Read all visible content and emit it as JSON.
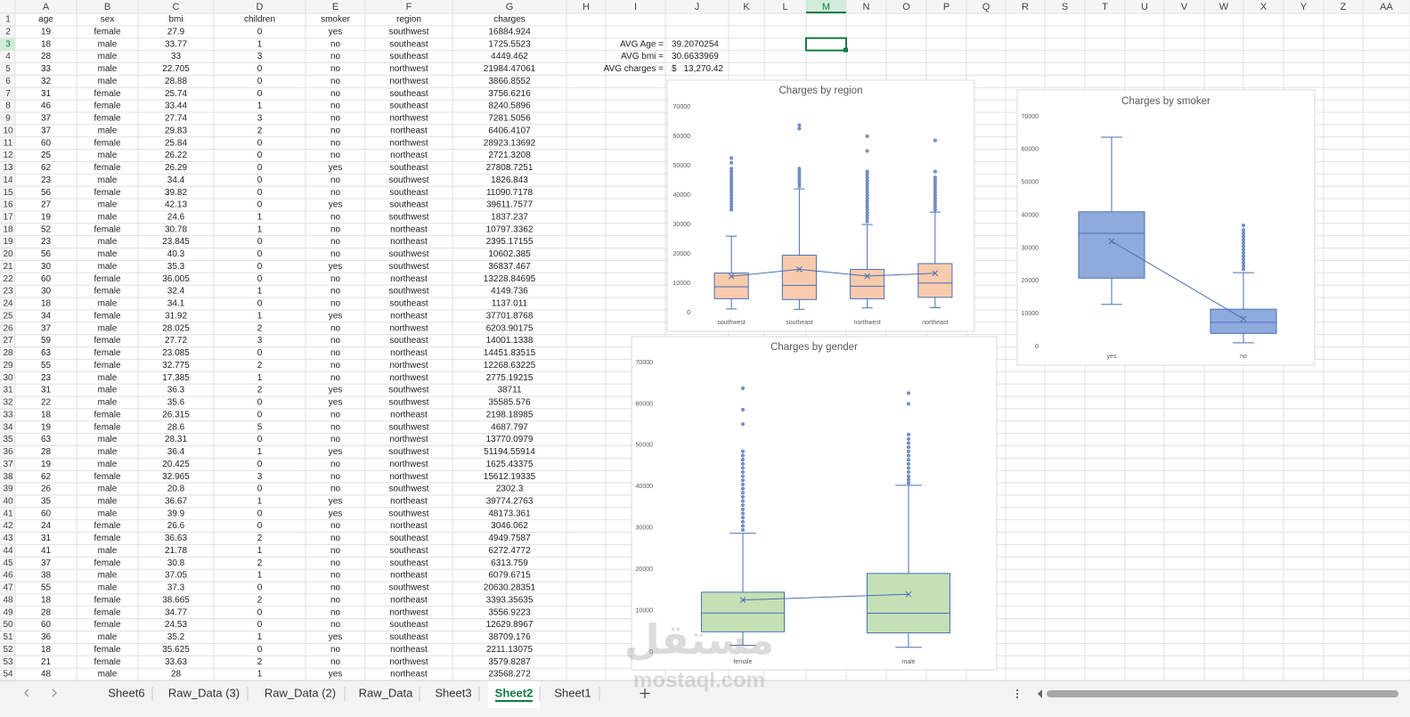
{
  "sheet": {
    "columns": [
      "A",
      "B",
      "C",
      "D",
      "E",
      "F",
      "G",
      "H",
      "I",
      "J",
      "K",
      "L",
      "M",
      "N",
      "O",
      "P",
      "Q",
      "R",
      "S",
      "T",
      "U",
      "V",
      "W",
      "X",
      "Y",
      "Z",
      "AA"
    ],
    "row_numbers": [
      1,
      2,
      3,
      4,
      5,
      6,
      7,
      8,
      9,
      10,
      11,
      12,
      13,
      14,
      15,
      16,
      17,
      18,
      19,
      20,
      21,
      22,
      23,
      24,
      25,
      26,
      27,
      28,
      29,
      30,
      31,
      32,
      33,
      34,
      35,
      36,
      37,
      38,
      39,
      40,
      41,
      42,
      43,
      44,
      45,
      46,
      47,
      48,
      49,
      50,
      51,
      52,
      53,
      54
    ],
    "header": [
      "age",
      "sex",
      "bmi",
      "children",
      "smoker",
      "region",
      "charges"
    ],
    "rows": [
      [
        19,
        "female",
        27.9,
        0,
        "yes",
        "southwest",
        16884.924
      ],
      [
        18,
        "male",
        33.77,
        1,
        "no",
        "southeast",
        1725.5523
      ],
      [
        28,
        "male",
        33,
        3,
        "no",
        "southeast",
        4449.462
      ],
      [
        33,
        "male",
        22.705,
        0,
        "no",
        "northwest",
        21984.47061
      ],
      [
        32,
        "male",
        28.88,
        0,
        "no",
        "northwest",
        3866.8552
      ],
      [
        31,
        "female",
        25.74,
        0,
        "no",
        "southeast",
        3756.6216
      ],
      [
        46,
        "female",
        33.44,
        1,
        "no",
        "southeast",
        8240.5896
      ],
      [
        37,
        "female",
        27.74,
        3,
        "no",
        "northwest",
        7281.5056
      ],
      [
        37,
        "male",
        29.83,
        2,
        "no",
        "northeast",
        6406.4107
      ],
      [
        60,
        "female",
        25.84,
        0,
        "no",
        "northwest",
        28923.13692
      ],
      [
        25,
        "male",
        26.22,
        0,
        "no",
        "northeast",
        2721.3208
      ],
      [
        62,
        "female",
        26.29,
        0,
        "yes",
        "southeast",
        27808.7251
      ],
      [
        23,
        "male",
        34.4,
        0,
        "no",
        "southwest",
        1826.843
      ],
      [
        56,
        "female",
        39.82,
        0,
        "no",
        "southeast",
        11090.7178
      ],
      [
        27,
        "male",
        42.13,
        0,
        "yes",
        "southeast",
        39611.7577
      ],
      [
        19,
        "male",
        24.6,
        1,
        "no",
        "southwest",
        1837.237
      ],
      [
        52,
        "female",
        30.78,
        1,
        "no",
        "northeast",
        10797.3362
      ],
      [
        23,
        "male",
        23.845,
        0,
        "no",
        "northeast",
        2395.17155
      ],
      [
        56,
        "male",
        40.3,
        0,
        "no",
        "southwest",
        10602.385
      ],
      [
        30,
        "male",
        35.3,
        0,
        "yes",
        "southwest",
        36837.467
      ],
      [
        60,
        "female",
        36.005,
        0,
        "no",
        "northeast",
        13228.84695
      ],
      [
        30,
        "female",
        32.4,
        1,
        "no",
        "southwest",
        4149.736
      ],
      [
        18,
        "male",
        34.1,
        0,
        "no",
        "southeast",
        1137.011
      ],
      [
        34,
        "female",
        31.92,
        1,
        "yes",
        "northeast",
        37701.8768
      ],
      [
        37,
        "male",
        28.025,
        2,
        "no",
        "northwest",
        6203.90175
      ],
      [
        59,
        "female",
        27.72,
        3,
        "no",
        "southeast",
        14001.1338
      ],
      [
        63,
        "female",
        23.085,
        0,
        "no",
        "northeast",
        14451.83515
      ],
      [
        55,
        "female",
        32.775,
        2,
        "no",
        "northwest",
        12268.63225
      ],
      [
        23,
        "male",
        17.385,
        1,
        "no",
        "northwest",
        2775.19215
      ],
      [
        31,
        "male",
        36.3,
        2,
        "yes",
        "southwest",
        38711
      ],
      [
        22,
        "male",
        35.6,
        0,
        "yes",
        "southwest",
        35585.576
      ],
      [
        18,
        "female",
        26.315,
        0,
        "no",
        "northeast",
        2198.18985
      ],
      [
        19,
        "female",
        28.6,
        5,
        "no",
        "southwest",
        4687.797
      ],
      [
        63,
        "male",
        28.31,
        0,
        "no",
        "northwest",
        13770.0979
      ],
      [
        28,
        "male",
        36.4,
        1,
        "yes",
        "southwest",
        51194.55914
      ],
      [
        19,
        "male",
        20.425,
        0,
        "no",
        "northwest",
        1625.43375
      ],
      [
        62,
        "female",
        32.965,
        3,
        "no",
        "northwest",
        15612.19335
      ],
      [
        26,
        "male",
        20.8,
        0,
        "no",
        "southwest",
        2302.3
      ],
      [
        35,
        "male",
        36.67,
        1,
        "yes",
        "northeast",
        39774.2763
      ],
      [
        60,
        "male",
        39.9,
        0,
        "yes",
        "southwest",
        48173.361
      ],
      [
        24,
        "female",
        26.6,
        0,
        "no",
        "northeast",
        3046.062
      ],
      [
        31,
        "female",
        36.63,
        2,
        "no",
        "southeast",
        4949.7587
      ],
      [
        41,
        "male",
        21.78,
        1,
        "no",
        "southeast",
        6272.4772
      ],
      [
        37,
        "female",
        30.8,
        2,
        "no",
        "southeast",
        6313.759
      ],
      [
        38,
        "male",
        37.05,
        1,
        "no",
        "northeast",
        6079.6715
      ],
      [
        55,
        "male",
        37.3,
        0,
        "no",
        "southwest",
        20630.28351
      ],
      [
        18,
        "female",
        38.665,
        2,
        "no",
        "northeast",
        3393.35635
      ],
      [
        28,
        "female",
        34.77,
        0,
        "no",
        "northwest",
        3556.9223
      ],
      [
        60,
        "female",
        24.53,
        0,
        "no",
        "southeast",
        12629.8967
      ],
      [
        36,
        "male",
        35.2,
        1,
        "yes",
        "southeast",
        38709.176
      ],
      [
        18,
        "female",
        35.625,
        0,
        "no",
        "northeast",
        2211.13075
      ],
      [
        21,
        "female",
        33.63,
        2,
        "no",
        "northwest",
        3579.8287
      ],
      [
        48,
        "male",
        28,
        1,
        "yes",
        "northeast",
        23568.272
      ]
    ],
    "stats": [
      {
        "label": "AVG Age =",
        "value": 39.2070254
      },
      {
        "label": "AVG bmi =",
        "value": 30.6633969
      },
      {
        "label": "AVG charges =",
        "symbol": "$",
        "value": "13,270.42"
      }
    ],
    "tabs": [
      "Sheet6",
      "Raw_Data (3)",
      "Raw_Data (2)",
      "Raw_Data",
      "Sheet3",
      "Sheet2",
      "Sheet1"
    ],
    "active_tab": 5
  },
  "watermark": {
    "logo": "مستقل",
    "url": "mostaql.com"
  },
  "chart_data": [
    {
      "type": "box",
      "title": "Charges by region",
      "categories": [
        "southwest",
        "southeast",
        "northwest",
        "northeast"
      ],
      "min": [
        1242,
        1122,
        1621,
        1695
      ],
      "q1": [
        4751,
        4441,
        4720,
        5194
      ],
      "median": [
        8798,
        9294,
        8966,
        10058
      ],
      "q3": [
        13463,
        19526,
        14712,
        16687
      ],
      "max": [
        26000,
        42100,
        30000,
        34200
      ],
      "mean": [
        12347,
        14735,
        12418,
        13406
      ],
      "outliers": [
        [
          35000,
          36000,
          37000,
          38000,
          39000,
          40000,
          41000,
          42000,
          43000,
          44000,
          45000,
          46000,
          47000,
          48000,
          49000,
          51000,
          52600
        ],
        [
          43000,
          44000,
          45000,
          46000,
          47000,
          48000,
          49000,
          62600,
          63770
        ],
        [
          31000,
          32000,
          33000,
          34000,
          35000,
          36000,
          37000,
          38000,
          39000,
          40000,
          41000,
          42000,
          43000,
          44000,
          45000,
          46000,
          47000,
          48000,
          55000,
          60000
        ],
        [
          35000,
          36000,
          37000,
          38000,
          39000,
          40000,
          41000,
          42000,
          43000,
          44000,
          45000,
          46000,
          48000,
          58600
        ]
      ],
      "ylim": [
        0,
        70000
      ],
      "yticks": [
        0,
        10000,
        20000,
        30000,
        40000,
        50000,
        60000,
        70000
      ],
      "color": "#f8cbad",
      "edge_color": "#4a6fb5"
    },
    {
      "type": "box",
      "title": "Charges by smoker",
      "categories": [
        "yes",
        "no"
      ],
      "min": [
        12830,
        1122
      ],
      "q1": [
        20826,
        3986
      ],
      "median": [
        34456,
        7345
      ],
      "q3": [
        41019,
        11363
      ],
      "max": [
        63770,
        22500
      ],
      "mean": [
        32050,
        8434
      ],
      "outliers": [
        [],
        [
          23500,
          24500,
          25500,
          26500,
          27500,
          28500,
          29500,
          30500,
          31500,
          32500,
          33500,
          34500,
          35500,
          36900
        ]
      ],
      "ylim": [
        0,
        70000
      ],
      "yticks": [
        0,
        10000,
        20000,
        30000,
        40000,
        50000,
        60000,
        70000
      ],
      "color": "#8faadc",
      "edge_color": "#4a6fb5"
    },
    {
      "type": "box",
      "title": "Charges by gender",
      "categories": [
        "female",
        "male"
      ],
      "min": [
        1607,
        1122
      ],
      "q1": [
        4885,
        4619
      ],
      "median": [
        9412,
        9369
      ],
      "q3": [
        14454,
        18989
      ],
      "max": [
        28700,
        40300
      ],
      "mean": [
        12569,
        13956
      ],
      "outliers": [
        [
          29500,
          30500,
          31500,
          32500,
          33500,
          34500,
          35500,
          36500,
          37500,
          38500,
          39500,
          40500,
          41500,
          42500,
          43500,
          44500,
          45500,
          46500,
          47500,
          48500,
          55100,
          58600,
          63770
        ],
        [
          40900,
          41700,
          42500,
          43500,
          44500,
          45500,
          46500,
          47500,
          48500,
          49500,
          50500,
          51500,
          52600,
          60000,
          62600
        ]
      ],
      "ylim": [
        0,
        70000
      ],
      "yticks": [
        0,
        10000,
        20000,
        30000,
        40000,
        50000,
        60000,
        70000
      ],
      "color": "#c5e0b4",
      "edge_color": "#4a6fb5"
    }
  ]
}
